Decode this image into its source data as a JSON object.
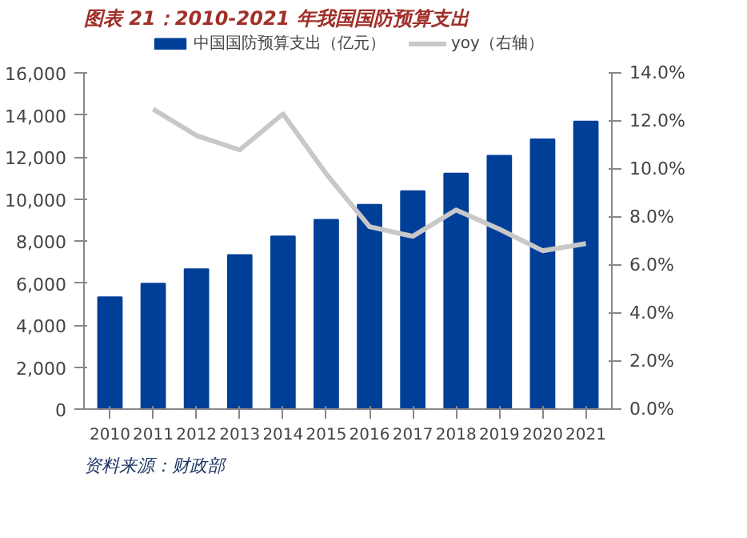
{
  "chart_data": {
    "type": "bar",
    "title": "图表 21：2010-2021 年我国国防预算支出",
    "categories": [
      "2010",
      "2011",
      "2012",
      "2013",
      "2014",
      "2015",
      "2016",
      "2017",
      "2018",
      "2019",
      "2020",
      "2021"
    ],
    "series": [
      {
        "name": "中国国防预算支出（亿元）",
        "color": "#003f98",
        "values": [
          5330,
          5980,
          6660,
          7340,
          8230,
          9020,
          9730,
          10380,
          11220,
          12070,
          12850,
          13700
        ]
      },
      {
        "name": "yoy（右轴）",
        "type": "line",
        "axis": "y2",
        "color": "#c8c8c8",
        "values": [
          null,
          12.5,
          11.4,
          10.8,
          12.3,
          9.8,
          7.6,
          7.2,
          8.3,
          7.5,
          6.6,
          6.9
        ]
      }
    ],
    "ylim": [
      0,
      16000
    ],
    "yticks": [
      {
        "value": 0,
        "label": "0"
      },
      {
        "value": 2000,
        "label": "2,000"
      },
      {
        "value": 4000,
        "label": "4,000"
      },
      {
        "value": 6000,
        "label": "6,000"
      },
      {
        "value": 8000,
        "label": "8,000"
      },
      {
        "value": 10000,
        "label": "10,000"
      },
      {
        "value": 12000,
        "label": "12,000"
      },
      {
        "value": 14000,
        "label": "14,000"
      },
      {
        "value": 16000,
        "label": "16,000"
      }
    ],
    "y2lim": [
      0,
      14
    ],
    "y2ticks": [
      {
        "value": 0,
        "label": "0.0%"
      },
      {
        "value": 2,
        "label": "2.0%"
      },
      {
        "value": 4,
        "label": "4.0%"
      },
      {
        "value": 6,
        "label": "6.0%"
      },
      {
        "value": 8,
        "label": "8.0%"
      },
      {
        "value": 10,
        "label": "10.0%"
      },
      {
        "value": 12,
        "label": "12.0%"
      },
      {
        "value": 14,
        "label": "14.0%"
      }
    ],
    "legend": "top",
    "grid": false,
    "annotations": [
      "资料来源：财政部"
    ]
  }
}
